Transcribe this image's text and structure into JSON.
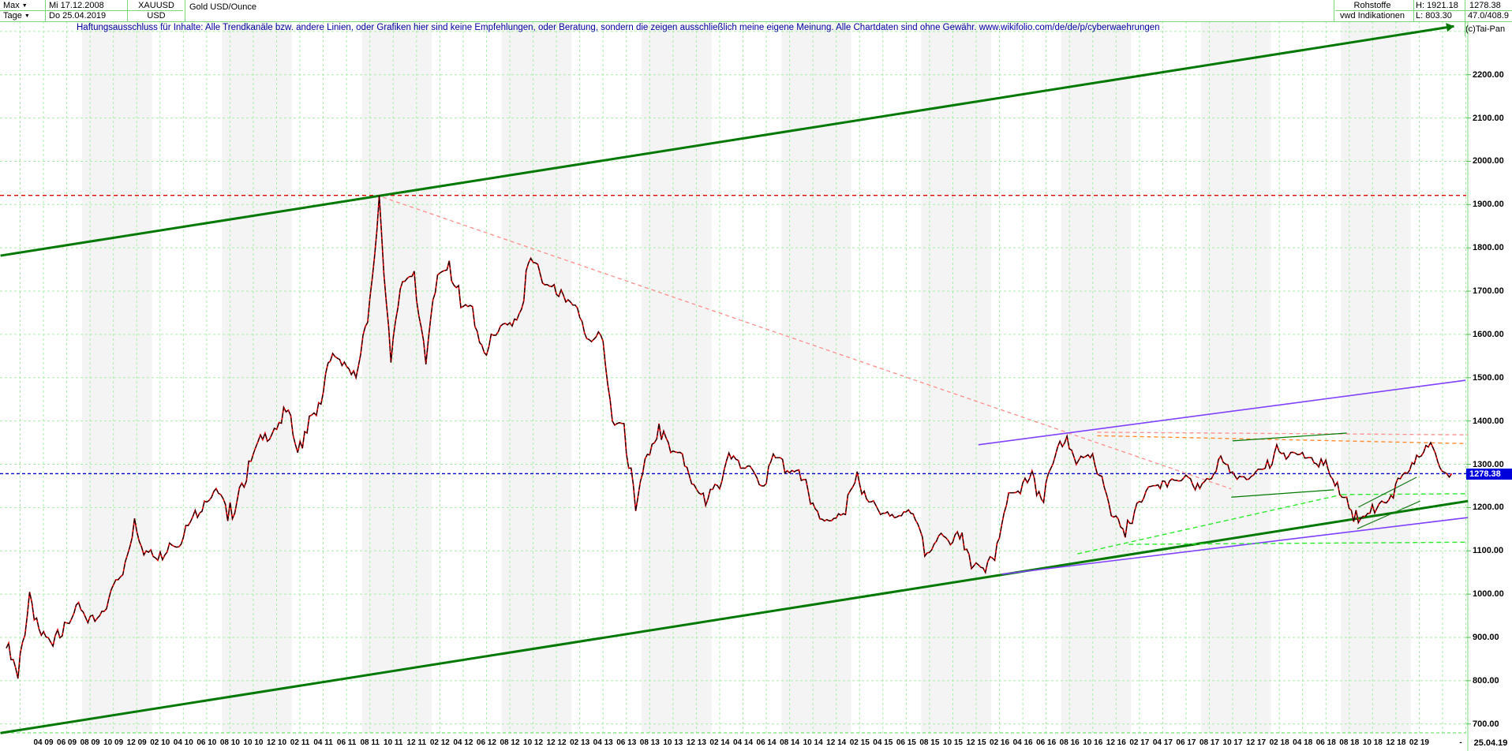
{
  "header": {
    "range_selector": "Max",
    "period_selector": "Tage",
    "date_from": "Mi 17.12.2008",
    "date_to": "Do 25.04.2019",
    "symbol": "XAUUSD",
    "currency": "USD",
    "instrument": "Gold USD/Ounce",
    "category": "Rohstoffe",
    "source": "vwd Indikationen",
    "high_label": "H: 1921.18",
    "low_label": "L: 803.30",
    "last_price": "1278.38",
    "indicator_values": "47.0/408.9"
  },
  "disclaimer": "Haftungsausschluss für Inhalte: Alle Trendkanäle bzw. andere Linien, oder Grafiken hier sind keine Empfehlungen, oder Beratung, sondern die zeigen ausschließlich meine eigene Meinung. Alle Chartdaten sind ohne Gewähr.   www.wikifolio.com/de/de/p/cyberwaehrungen",
  "copyright": "(c)Tai-Pan",
  "x_axis": {
    "labels": [
      "04 09",
      "06 09",
      "08 09",
      "10 09",
      "12 09",
      "02 10",
      "04 10",
      "06 10",
      "08 10",
      "10 10",
      "12 10",
      "02 11",
      "04 11",
      "06 11",
      "08 11",
      "10 11",
      "12 11",
      "02 12",
      "04 12",
      "06 12",
      "08 12",
      "10 12",
      "12 12",
      "02 13",
      "04 13",
      "06 13",
      "08 13",
      "10 13",
      "12 13",
      "02 14",
      "04 14",
      "06 14",
      "08 14",
      "10 14",
      "12 14",
      "02 15",
      "04 15",
      "06 15",
      "08 15",
      "10 15",
      "12 15",
      "02 16",
      "04 16",
      "06 16",
      "08 16",
      "10 16",
      "12 16",
      "02 17",
      "04 17",
      "06 17",
      "08 17",
      "10 17",
      "12 17",
      "02 18",
      "04 18",
      "06 18",
      "08 18",
      "10 18",
      "12 18",
      "02 19"
    ],
    "end_dash": "-",
    "end_date": "25.04.19"
  },
  "y_axis": {
    "ticks": [
      "2200.00",
      "2100.00",
      "2000.00",
      "1900.00",
      "1800.00",
      "1700.00",
      "1600.00",
      "1500.00",
      "1400.00",
      "1300.00",
      "1278.38",
      "1200.00",
      "1100.00",
      "1000.00",
      "900.00",
      "800.00",
      "700.00"
    ],
    "price_marker": "1278.38"
  },
  "chart_data": {
    "type": "line",
    "title": "Gold USD/Ounce (XAUUSD) daily, 17.12.2008 - 25.04.2019",
    "x_start": "2008-12",
    "x_interval": "monthly",
    "ylabel": "USD per Ounce",
    "ylim": [
      700,
      2300
    ],
    "high": 1921.18,
    "low": 803.3,
    "last": 1278.38,
    "grid": true,
    "values": [
      875,
      805,
      1005,
      905,
      880,
      935,
      975,
      934,
      950,
      1010,
      1045,
      1175,
      1100,
      1078,
      1118,
      1115,
      1179,
      1215,
      1244,
      1169,
      1246,
      1307,
      1357,
      1383,
      1421,
      1327,
      1411,
      1439,
      1556,
      1536,
      1500,
      1628,
      1921,
      1535,
      1722,
      1746,
      1531,
      1737,
      1770,
      1662,
      1664,
      1558,
      1598,
      1622,
      1648,
      1776,
      1719,
      1715,
      1675,
      1661,
      1588,
      1598,
      1400,
      1394,
      1192,
      1323,
      1394,
      1327,
      1324,
      1253,
      1205,
      1251,
      1326,
      1291,
      1288,
      1250,
      1315,
      1285,
      1287,
      1208,
      1173,
      1175,
      1184,
      1283,
      1213,
      1184,
      1184,
      1190,
      1171,
      1095,
      1135,
      1114,
      1142,
      1065,
      1050,
      1118,
      1234,
      1232,
      1285,
      1212,
      1320,
      1365,
      1309,
      1315,
      1272,
      1178,
      1131,
      1210,
      1248,
      1244,
      1266,
      1268,
      1241,
      1267,
      1311,
      1280,
      1271,
      1275,
      1291,
      1345,
      1318,
      1323,
      1315,
      1298,
      1250,
      1224,
      1165,
      1187,
      1215,
      1222,
      1281,
      1321,
      1340,
      1292,
      1278.38
    ],
    "levels": [
      {
        "name": "all-time-high-level",
        "price": 1921.18,
        "color": "#e00000",
        "dash": "5 4",
        "width": 1.4
      },
      {
        "name": "last-price-level",
        "price": 1278.38,
        "color": "#0000cc",
        "dash": "4 3",
        "width": 1.4
      }
    ],
    "trendlines": [
      {
        "name": "upper-channel-line",
        "color": "#007800",
        "width": 3,
        "dash": null,
        "from": [
          -0.5,
          1782
        ],
        "to": [
          124.2,
          2312
        ],
        "arrow": true
      },
      {
        "name": "lower-channel-line",
        "color": "#007800",
        "width": 3,
        "dash": null,
        "from": [
          -0.5,
          679
        ],
        "to": [
          125.4,
          1215
        ]
      },
      {
        "name": "peak-descent-line",
        "color": "#ff9494",
        "width": 1.4,
        "dash": "5 4",
        "from": [
          32.3,
          1917
        ],
        "to": [
          105.1,
          1243
        ]
      },
      {
        "name": "resistance-salmon",
        "color": "#ff9494",
        "width": 1.4,
        "dash": "5 4",
        "from": [
          93.6,
          1374
        ],
        "to": [
          125.4,
          1368
        ]
      },
      {
        "name": "resistance-orange",
        "color": "#ff8c30",
        "width": 1.4,
        "dash": "5 4",
        "from": [
          93.6,
          1366
        ],
        "to": [
          125.0,
          1348
        ]
      },
      {
        "name": "purple-upper-line",
        "color": "#8040ff",
        "width": 1.6,
        "dash": null,
        "from": [
          83.4,
          1345
        ],
        "to": [
          125.2,
          1494
        ]
      },
      {
        "name": "purple-lower-line",
        "color": "#8040ff",
        "width": 1.6,
        "dash": null,
        "from": [
          85.4,
          1046
        ],
        "to": [
          125.4,
          1177
        ]
      },
      {
        "name": "green-dashed-diagonal",
        "color": "#2ee82e",
        "width": 1.4,
        "dash": "6 4",
        "from": [
          91.9,
          1093
        ],
        "to": [
          114.6,
          1230
        ]
      },
      {
        "name": "green-dashed-flat",
        "color": "#2ee82e",
        "width": 1.4,
        "dash": "6 4",
        "from": [
          114.6,
          1230
        ],
        "to": [
          125.4,
          1232
        ]
      },
      {
        "name": "green-dashed-low",
        "color": "#2ee82e",
        "width": 1.4,
        "dash": "6 4",
        "from": [
          96.3,
          1115
        ],
        "to": [
          125.4,
          1120
        ]
      },
      {
        "name": "minor-green-upper",
        "color": "#007800",
        "width": 1.2,
        "dash": null,
        "from": [
          105.2,
          1354
        ],
        "to": [
          115.0,
          1372
        ]
      },
      {
        "name": "minor-green-lower",
        "color": "#007800",
        "width": 1.2,
        "dash": null,
        "from": [
          105.1,
          1224
        ],
        "to": [
          113.9,
          1241
        ]
      },
      {
        "name": "wedge-upper-line",
        "color": "#1e7a1e",
        "width": 1.2,
        "dash": null,
        "from": [
          116.0,
          1201
        ],
        "to": [
          121.0,
          1270
        ]
      },
      {
        "name": "wedge-lower-line",
        "color": "#1e7a1e",
        "width": 1.2,
        "dash": null,
        "from": [
          115.9,
          1151
        ],
        "to": [
          121.3,
          1215
        ]
      }
    ],
    "colors": {
      "series_main": "#000000",
      "series_down": "#e60000",
      "grid": "#aaeeaa",
      "axis_border": "#7dd87d",
      "band_shade": "#f4f4f4"
    }
  }
}
